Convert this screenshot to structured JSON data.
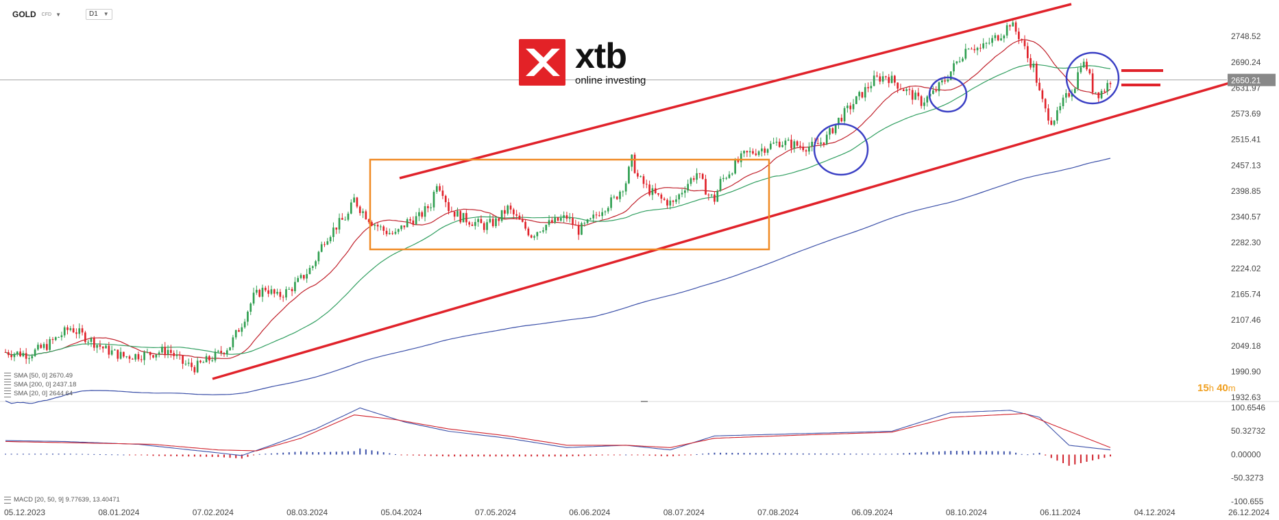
{
  "header": {
    "symbol": "GOLD",
    "instrument_type": "CFD",
    "timeframe": "D1"
  },
  "logo": {
    "word": "xtb",
    "tagline": "online investing"
  },
  "indicators": {
    "sma50": "SMA [50, 0] 2670.49",
    "sma200": "SMA [200, 0] 2437.18",
    "sma20": "SMA [20, 0] 2644.64",
    "macd": "MACD [20, 50, 9] 9.77639, 13.40471"
  },
  "timer": {
    "hours": "15",
    "h_unit": "h",
    "minutes": "40",
    "m_unit": "m"
  },
  "colors": {
    "bull": "#2e9e4f",
    "bear": "#e0222a",
    "sma20": "#c0202a",
    "sma50": "#2f9e5f",
    "sma200": "#3a4fa8",
    "channel": "#e0222a",
    "range_box": "#f08a24",
    "highlight_circle": "#3a3fc4",
    "macd_line": "#3a4fa8",
    "signal_line": "#d0202a",
    "price_label_bg": "#888888"
  },
  "chart_data": {
    "type": "candlestick",
    "symbol": "GOLD",
    "timeframe": "D1",
    "ylim": [
      1932.63,
      2800
    ],
    "y_ticks": [
      "2748.52",
      "2690.24",
      "2631.97",
      "2573.69",
      "2515.41",
      "2457.13",
      "2398.85",
      "2340.57",
      "2282.30",
      "2224.02",
      "2165.74",
      "2107.46",
      "2049.18",
      "1990.90",
      "1932.63"
    ],
    "x_ticks": [
      "05.12.2023",
      "08.01.2024",
      "07.02.2024",
      "08.03.2024",
      "05.04.2024",
      "07.05.2024",
      "06.06.2024",
      "08.07.2024",
      "07.08.2024",
      "06.09.2024",
      "08.10.2024",
      "06.11.2024",
      "04.12.2024",
      "26.12.2024"
    ],
    "current_price": "2650.21",
    "price_path": [
      [
        0,
        2035
      ],
      [
        8,
        2030
      ],
      [
        14,
        2050
      ],
      [
        22,
        2090
      ],
      [
        28,
        2065
      ],
      [
        34,
        2040
      ],
      [
        40,
        2025
      ],
      [
        48,
        2030
      ],
      [
        55,
        2040
      ],
      [
        60,
        2010
      ],
      [
        64,
        2000
      ],
      [
        68,
        2015
      ],
      [
        72,
        2030
      ],
      [
        76,
        2050
      ],
      [
        80,
        2100
      ],
      [
        84,
        2160
      ],
      [
        88,
        2180
      ],
      [
        92,
        2160
      ],
      [
        96,
        2175
      ],
      [
        100,
        2200
      ],
      [
        104,
        2230
      ],
      [
        108,
        2290
      ],
      [
        112,
        2320
      ],
      [
        116,
        2345
      ],
      [
        118,
        2380
      ],
      [
        120,
        2360
      ],
      [
        124,
        2330
      ],
      [
        128,
        2310
      ],
      [
        132,
        2300
      ],
      [
        136,
        2330
      ],
      [
        140,
        2340
      ],
      [
        144,
        2370
      ],
      [
        146,
        2420
      ],
      [
        148,
        2400
      ],
      [
        150,
        2360
      ],
      [
        154,
        2340
      ],
      [
        158,
        2330
      ],
      [
        162,
        2320
      ],
      [
        166,
        2330
      ],
      [
        170,
        2360
      ],
      [
        174,
        2330
      ],
      [
        178,
        2300
      ],
      [
        182,
        2320
      ],
      [
        186,
        2330
      ],
      [
        190,
        2340
      ],
      [
        194,
        2310
      ],
      [
        198,
        2330
      ],
      [
        202,
        2360
      ],
      [
        206,
        2380
      ],
      [
        210,
        2420
      ],
      [
        212,
        2470
      ],
      [
        214,
        2430
      ],
      [
        218,
        2400
      ],
      [
        222,
        2380
      ],
      [
        226,
        2370
      ],
      [
        230,
        2410
      ],
      [
        234,
        2440
      ],
      [
        238,
        2390
      ],
      [
        240,
        2380
      ],
      [
        242,
        2420
      ],
      [
        246,
        2450
      ],
      [
        250,
        2480
      ],
      [
        254,
        2490
      ],
      [
        258,
        2500
      ],
      [
        262,
        2510
      ],
      [
        266,
        2505
      ],
      [
        270,
        2500
      ],
      [
        274,
        2500
      ],
      [
        278,
        2520
      ],
      [
        282,
        2560
      ],
      [
        286,
        2590
      ],
      [
        290,
        2620
      ],
      [
        294,
        2650
      ],
      [
        298,
        2660
      ],
      [
        302,
        2640
      ],
      [
        306,
        2620
      ],
      [
        310,
        2600
      ],
      [
        314,
        2620
      ],
      [
        318,
        2650
      ],
      [
        322,
        2690
      ],
      [
        326,
        2730
      ],
      [
        330,
        2720
      ],
      [
        334,
        2740
      ],
      [
        338,
        2760
      ],
      [
        340,
        2780
      ],
      [
        342,
        2760
      ],
      [
        344,
        2740
      ],
      [
        346,
        2700
      ],
      [
        348,
        2680
      ],
      [
        350,
        2620
      ],
      [
        352,
        2580
      ],
      [
        354,
        2560
      ],
      [
        356,
        2570
      ],
      [
        358,
        2600
      ],
      [
        360,
        2620
      ],
      [
        362,
        2640
      ],
      [
        364,
        2690
      ],
      [
        366,
        2680
      ],
      [
        368,
        2630
      ],
      [
        370,
        2620
      ],
      [
        372,
        2630
      ],
      [
        374,
        2650
      ]
    ],
    "sma": {
      "sma20": "dark red, follows price closely",
      "sma50": "green, smoother trend",
      "sma200": "blue, long-term rising line"
    },
    "annotations": {
      "channel": "ascending red trend channel",
      "range_box": "orange consolidation rectangle",
      "circles": 3,
      "target_lines": 2
    },
    "macd": {
      "ylim": [
        -100.655,
        100.6546
      ],
      "y_ticks": [
        "100.6546",
        "50.32732",
        "0.00000",
        "-50.3273",
        "-100.655"
      ],
      "macd_path": [
        [
          0,
          30
        ],
        [
          20,
          28
        ],
        [
          45,
          22
        ],
        [
          70,
          5
        ],
        [
          80,
          -2
        ],
        [
          90,
          20
        ],
        [
          105,
          55
        ],
        [
          120,
          100
        ],
        [
          135,
          70
        ],
        [
          150,
          50
        ],
        [
          170,
          35
        ],
        [
          190,
          15
        ],
        [
          210,
          20
        ],
        [
          225,
          10
        ],
        [
          240,
          40
        ],
        [
          270,
          45
        ],
        [
          300,
          50
        ],
        [
          320,
          90
        ],
        [
          340,
          95
        ],
        [
          350,
          80
        ],
        [
          360,
          20
        ],
        [
          374,
          10
        ]
      ],
      "signal_path": [
        [
          0,
          28
        ],
        [
          25,
          25
        ],
        [
          50,
          22
        ],
        [
          72,
          10
        ],
        [
          85,
          8
        ],
        [
          100,
          35
        ],
        [
          118,
          85
        ],
        [
          132,
          75
        ],
        [
          150,
          55
        ],
        [
          170,
          40
        ],
        [
          190,
          20
        ],
        [
          210,
          20
        ],
        [
          225,
          15
        ],
        [
          240,
          35
        ],
        [
          270,
          42
        ],
        [
          300,
          48
        ],
        [
          320,
          80
        ],
        [
          345,
          88
        ],
        [
          358,
          55
        ],
        [
          374,
          15
        ]
      ]
    }
  }
}
